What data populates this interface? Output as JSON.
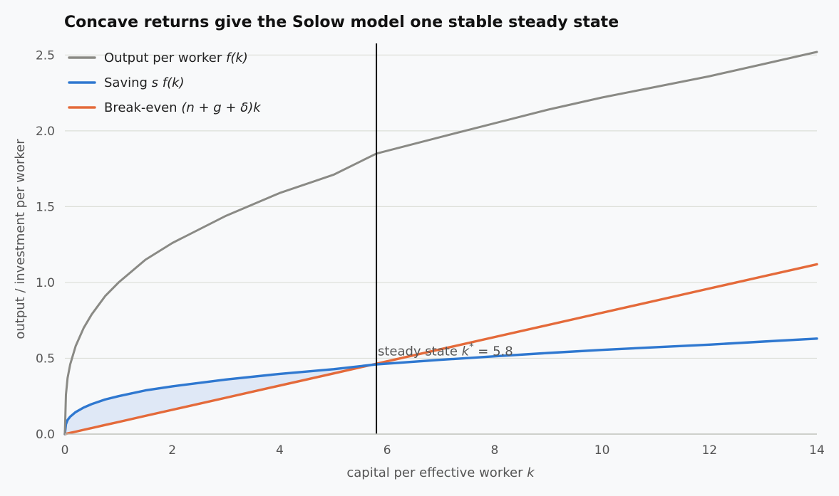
{
  "chart_data": {
    "type": "line",
    "title": "Concave returns give the Solow model one stable steady state",
    "xlabel_text": "capital per effective worker ",
    "xlabel_var": "k",
    "ylabel": "output / investment per worker",
    "xlim": [
      0,
      14
    ],
    "ylim": [
      0,
      2.6
    ],
    "x_ticks": [
      0,
      2,
      4,
      6,
      8,
      10,
      12,
      14
    ],
    "y_ticks": [
      0.0,
      0.5,
      1.0,
      1.5,
      2.0,
      2.5
    ],
    "x_tick_labels": [
      "0",
      "2",
      "4",
      "6",
      "8",
      "10",
      "12",
      "14"
    ],
    "y_tick_labels": [
      "0.0",
      "0.5",
      "1.0",
      "1.5",
      "2.0",
      "2.5"
    ],
    "grid": "horizontal",
    "legend_position": "top-left",
    "x": [
      0,
      0.02,
      0.05,
      0.1,
      0.2,
      0.35,
      0.5,
      0.75,
      1,
      1.5,
      2,
      3,
      4,
      5,
      5.8,
      7,
      8,
      9,
      10,
      11,
      12,
      13,
      14
    ],
    "series": [
      {
        "key": "output",
        "legend_text": "Output per worker ",
        "legend_math": "f(k)",
        "color": "#8a8a85",
        "values": [
          0.0,
          0.26,
          0.37,
          0.46,
          0.58,
          0.7,
          0.79,
          0.91,
          1.0,
          1.15,
          1.26,
          1.44,
          1.59,
          1.71,
          1.85,
          1.96,
          2.05,
          2.14,
          2.22,
          2.29,
          2.36,
          2.44,
          2.52
        ]
      },
      {
        "key": "saving",
        "legend_text": "Saving ",
        "legend_math": "s f(k)",
        "color": "#2f78d0",
        "values": [
          0.0,
          0.065,
          0.093,
          0.115,
          0.145,
          0.175,
          0.198,
          0.228,
          0.25,
          0.288,
          0.315,
          0.36,
          0.397,
          0.428,
          0.46,
          0.49,
          0.513,
          0.535,
          0.555,
          0.573,
          0.59,
          0.61,
          0.63
        ]
      },
      {
        "key": "breakeven",
        "legend_text": "Break-even ",
        "legend_math": "(n + g + δ)k",
        "color": "#e46a3a",
        "values": [
          0.0,
          0.0016,
          0.004,
          0.008,
          0.016,
          0.028,
          0.04,
          0.06,
          0.08,
          0.12,
          0.16,
          0.24,
          0.32,
          0.4,
          0.464,
          0.56,
          0.64,
          0.72,
          0.8,
          0.88,
          0.96,
          1.04,
          1.12
        ]
      }
    ],
    "fill_between": {
      "upper": "saving",
      "lower": "breakeven",
      "x_range": [
        0,
        5.8
      ],
      "color": "#dfe8f6"
    },
    "vline": {
      "x": 5.8,
      "color": "#111111"
    },
    "annotation": {
      "text": "steady state ",
      "math": "k",
      "sup": "*",
      "value_text": " = 5.8",
      "x": 6.9,
      "y": 0.58
    }
  }
}
